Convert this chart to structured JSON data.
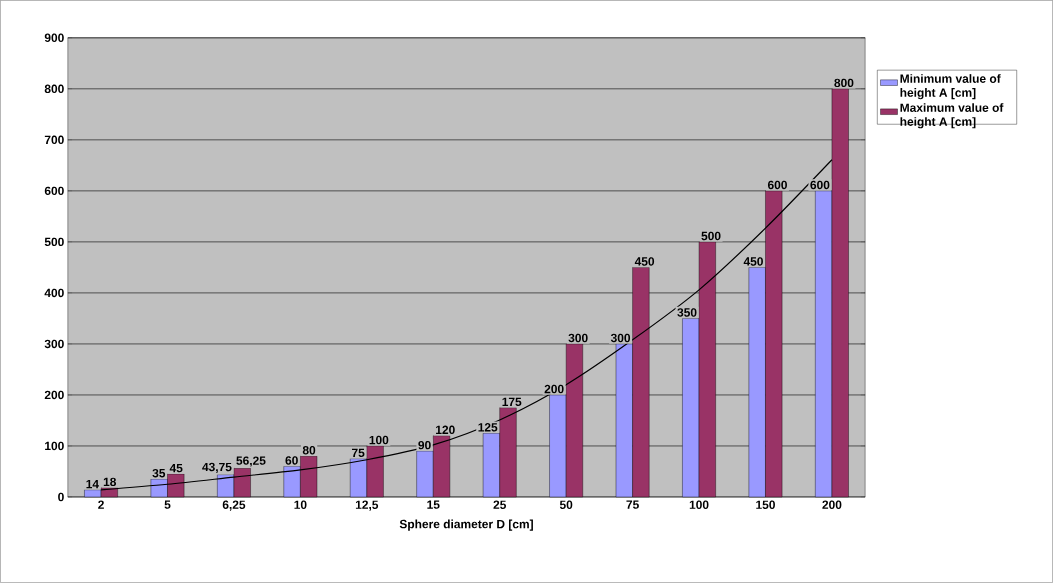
{
  "chart_data": {
    "type": "bar",
    "xlabel": "Sphere diameter D [cm]",
    "categories": [
      "2",
      "5",
      "6,25",
      "10",
      "12,5",
      "15",
      "25",
      "50",
      "75",
      "100",
      "150",
      "200"
    ],
    "ylim": [
      0,
      900
    ],
    "yticks": [
      0,
      100,
      200,
      300,
      400,
      500,
      600,
      700,
      800,
      900
    ],
    "grid": "y",
    "legend": "right",
    "marker": "none",
    "series": [
      {
        "name": "Minimum value of height A [cm]",
        "color": "#9999ff",
        "values": [
          14,
          35,
          43.75,
          60,
          75,
          90,
          125,
          200,
          300,
          350,
          450,
          600
        ],
        "value_labels": [
          "14",
          "35",
          "43,75",
          "60",
          "75",
          "90",
          "125",
          "200",
          "300",
          "350",
          "450",
          "600"
        ]
      },
      {
        "name": "Maximum value of height A [cm]",
        "color": "#993366",
        "values": [
          18,
          45,
          56.25,
          80,
          100,
          120,
          175,
          300,
          450,
          500,
          600,
          800
        ],
        "value_labels": [
          "18",
          "45",
          "56,25",
          "80",
          "100",
          "120",
          "175",
          "300",
          "450",
          "500",
          "600",
          "800"
        ]
      },
      {
        "type": "line",
        "color": "#000000",
        "line_style": "solid",
        "values": [
          14,
          25,
          39,
          53,
          73,
          102,
          151,
          220,
          308,
          406,
          527,
          661
        ]
      }
    ]
  }
}
